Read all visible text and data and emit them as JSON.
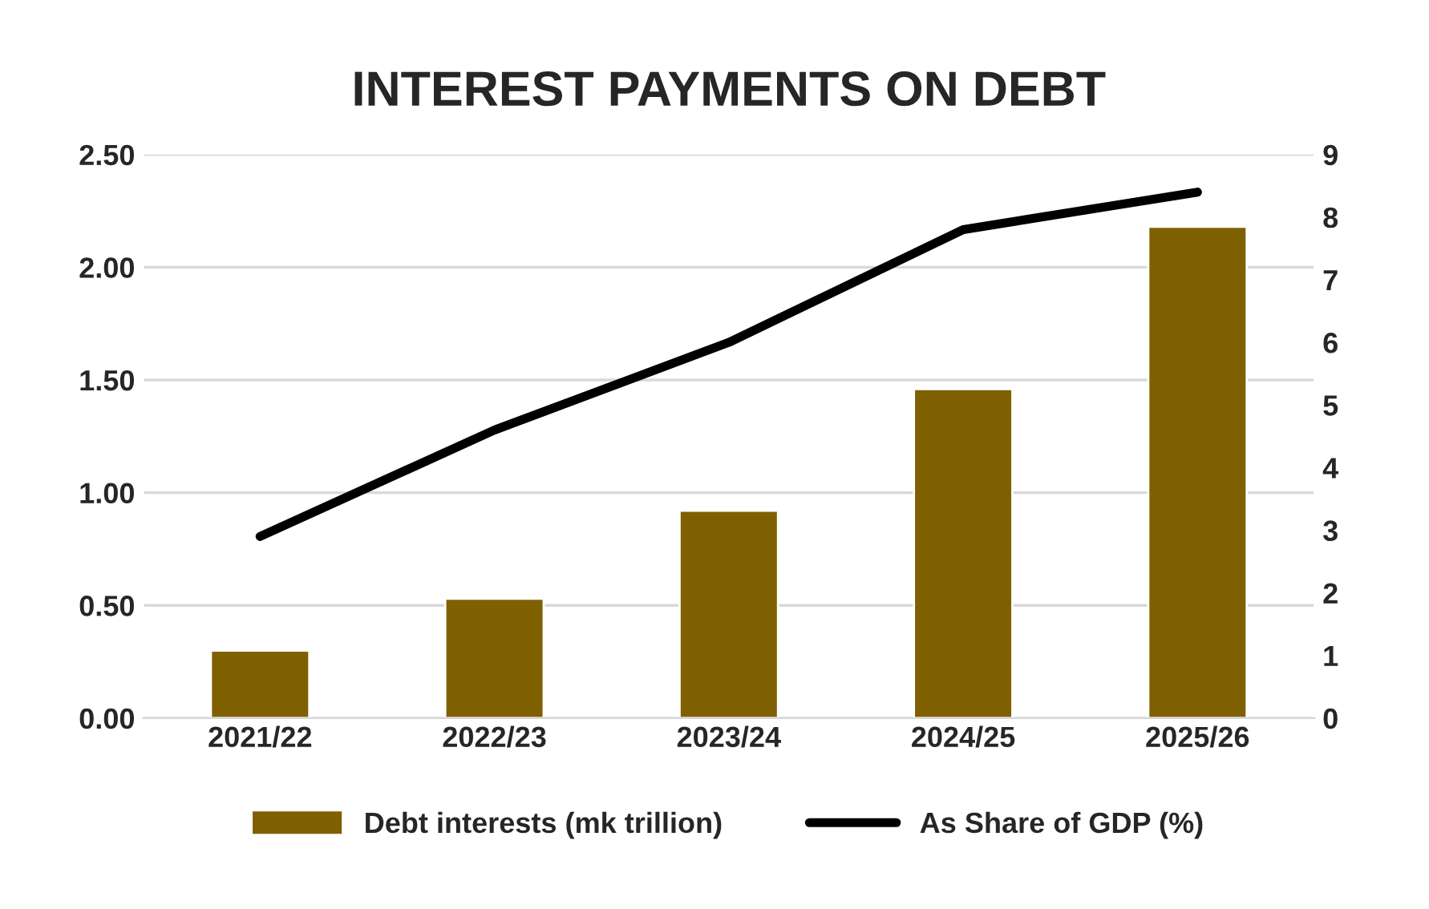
{
  "chart_data": {
    "type": "bar",
    "title": "INTEREST PAYMENTS ON DEBT",
    "categories": [
      "2021/22",
      "2022/23",
      "2023/24",
      "2024/25",
      "2025/26"
    ],
    "series": [
      {
        "name": "Debt interests (mk trillion)",
        "color": "#7f6000",
        "values": [
          0.3,
          0.53,
          0.92,
          1.46,
          2.18
        ]
      },
      {
        "name": "As Share of GDP (%)",
        "type": "line",
        "axis": "y2",
        "color": "#000000",
        "values": [
          2.9,
          4.6,
          6.0,
          7.8,
          8.4
        ]
      }
    ],
    "ylim": [
      0,
      2.5
    ],
    "yticks": [
      {
        "value": 0,
        "label": "0.00"
      },
      {
        "value": 0.5,
        "label": "0.50"
      },
      {
        "value": 1,
        "label": "1.00"
      },
      {
        "value": 1.5,
        "label": "1.50"
      },
      {
        "value": 2,
        "label": "2.00"
      },
      {
        "value": 2.5,
        "label": "2.50"
      }
    ],
    "y2lim": [
      0,
      9
    ],
    "y2ticks": [
      0,
      1,
      2,
      3,
      4,
      5,
      6,
      7,
      8,
      9
    ],
    "grid": "y",
    "legend": "bottom"
  }
}
